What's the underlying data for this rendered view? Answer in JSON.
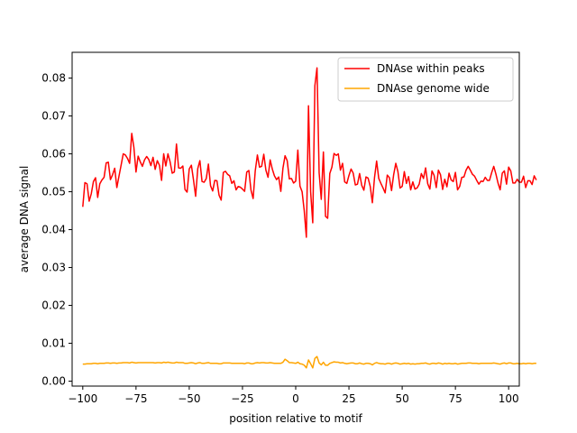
{
  "chart_data": {
    "type": "line",
    "title": "",
    "xlabel": "position relative to motif",
    "ylabel": "average DNA signal",
    "xlim": [
      -105,
      105
    ],
    "ylim": [
      -0.0013,
      0.0868
    ],
    "xticks": [
      -100,
      -75,
      -50,
      -25,
      0,
      25,
      50,
      75,
      100
    ],
    "yticks": [
      0.0,
      0.01,
      0.02,
      0.03,
      0.04,
      0.05,
      0.06,
      0.07,
      0.08
    ],
    "xtick_labels": [
      "−100",
      "−75",
      "−50",
      "−25",
      "0",
      "25",
      "50",
      "75",
      "100"
    ],
    "ytick_labels": [
      "0.00",
      "0.01",
      "0.02",
      "0.03",
      "0.04",
      "0.05",
      "0.06",
      "0.07",
      "0.08"
    ],
    "grid": false,
    "legend_position": "top-right",
    "x_start": -100,
    "x_step": 1,
    "series": [
      {
        "name": "DNAse within peaks",
        "color": "#ff0000",
        "values": [
          0.046,
          0.0524,
          0.0521,
          0.0475,
          0.0495,
          0.0527,
          0.0537,
          0.0485,
          0.0521,
          0.0531,
          0.0538,
          0.0576,
          0.0578,
          0.0532,
          0.0545,
          0.0562,
          0.0511,
          0.0541,
          0.057,
          0.06,
          0.0597,
          0.0588,
          0.0575,
          0.0654,
          0.0617,
          0.0552,
          0.0594,
          0.0579,
          0.0567,
          0.0584,
          0.0593,
          0.0585,
          0.0569,
          0.0591,
          0.0559,
          0.0582,
          0.057,
          0.053,
          0.06,
          0.0568,
          0.06,
          0.0579,
          0.0549,
          0.0552,
          0.0626,
          0.0563,
          0.0562,
          0.0568,
          0.0506,
          0.0499,
          0.056,
          0.057,
          0.0531,
          0.0488,
          0.0561,
          0.0582,
          0.0527,
          0.0525,
          0.0535,
          0.0573,
          0.0516,
          0.0502,
          0.053,
          0.0529,
          0.0491,
          0.0478,
          0.0551,
          0.0554,
          0.0546,
          0.0542,
          0.0522,
          0.0529,
          0.0505,
          0.0514,
          0.0512,
          0.0507,
          0.0501,
          0.0552,
          0.0556,
          0.0504,
          0.0482,
          0.0555,
          0.0597,
          0.0565,
          0.0567,
          0.0599,
          0.0557,
          0.0538,
          0.0584,
          0.056,
          0.0542,
          0.0532,
          0.0539,
          0.0501,
          0.0562,
          0.0595,
          0.0582,
          0.0534,
          0.0535,
          0.0523,
          0.0528,
          0.061,
          0.0515,
          0.05,
          0.045,
          0.038,
          0.0727,
          0.05,
          0.0418,
          0.078,
          0.0827,
          0.055,
          0.048,
          0.0605,
          0.0435,
          0.043,
          0.0548,
          0.0565,
          0.0601,
          0.0596,
          0.06,
          0.0557,
          0.0575,
          0.0526,
          0.0522,
          0.0543,
          0.056,
          0.0549,
          0.0518,
          0.052,
          0.0548,
          0.0517,
          0.0504,
          0.0539,
          0.0536,
          0.0514,
          0.0471,
          0.0537,
          0.0581,
          0.0535,
          0.0522,
          0.051,
          0.0497,
          0.0544,
          0.0537,
          0.0503,
          0.0545,
          0.0575,
          0.0553,
          0.051,
          0.0514,
          0.0553,
          0.0522,
          0.054,
          0.0505,
          0.0526,
          0.0507,
          0.051,
          0.052,
          0.0548,
          0.0535,
          0.0563,
          0.0521,
          0.0507,
          0.0555,
          0.0543,
          0.0511,
          0.0557,
          0.0545,
          0.0506,
          0.0533,
          0.0513,
          0.0549,
          0.0531,
          0.0527,
          0.0551,
          0.0505,
          0.0514,
          0.0538,
          0.0539,
          0.0557,
          0.0567,
          0.0557,
          0.0546,
          0.0541,
          0.053,
          0.052,
          0.0528,
          0.0527,
          0.0538,
          0.053,
          0.053,
          0.055,
          0.0567,
          0.0547,
          0.0523,
          0.0505,
          0.0549,
          0.0555,
          0.052,
          0.0565,
          0.0555,
          0.0523,
          0.0523,
          0.0533,
          0.0525,
          0.0525,
          0.0541,
          0.0511,
          0.0529,
          0.0529,
          0.0519,
          0.0542,
          0.0531
        ]
      },
      {
        "name": "DNAse genome wide",
        "color": "#ffa500",
        "values": [
          0.0045,
          0.0045,
          0.0046,
          0.0046,
          0.0046,
          0.0047,
          0.0047,
          0.0046,
          0.0047,
          0.0047,
          0.0047,
          0.0048,
          0.0048,
          0.0047,
          0.0048,
          0.0048,
          0.0047,
          0.0048,
          0.0048,
          0.0049,
          0.0049,
          0.0049,
          0.0048,
          0.005,
          0.0049,
          0.0048,
          0.0049,
          0.0049,
          0.0049,
          0.0049,
          0.0049,
          0.0049,
          0.0049,
          0.0049,
          0.0048,
          0.0049,
          0.0049,
          0.0048,
          0.005,
          0.0049,
          0.005,
          0.0049,
          0.0048,
          0.0048,
          0.005,
          0.0049,
          0.0049,
          0.0049,
          0.0047,
          0.0047,
          0.0048,
          0.0049,
          0.0048,
          0.0046,
          0.0048,
          0.0049,
          0.0047,
          0.0047,
          0.0048,
          0.0049,
          0.0047,
          0.0047,
          0.0047,
          0.0047,
          0.0046,
          0.0046,
          0.0048,
          0.0048,
          0.0048,
          0.0048,
          0.0047,
          0.0047,
          0.0047,
          0.0047,
          0.0047,
          0.0047,
          0.0046,
          0.0048,
          0.0048,
          0.0046,
          0.0046,
          0.0048,
          0.0049,
          0.0048,
          0.0049,
          0.0049,
          0.0048,
          0.0048,
          0.0049,
          0.0048,
          0.0047,
          0.0047,
          0.0047,
          0.0047,
          0.005,
          0.0058,
          0.0054,
          0.0049,
          0.0049,
          0.0048,
          0.0047,
          0.005,
          0.0046,
          0.0045,
          0.0042,
          0.0035,
          0.0056,
          0.0046,
          0.0035,
          0.006,
          0.0065,
          0.0048,
          0.0043,
          0.005,
          0.0042,
          0.0042,
          0.0047,
          0.0049,
          0.0051,
          0.005,
          0.005,
          0.0048,
          0.0049,
          0.0047,
          0.0046,
          0.0047,
          0.0048,
          0.0048,
          0.0046,
          0.0046,
          0.0048,
          0.0046,
          0.0045,
          0.0047,
          0.0047,
          0.0046,
          0.0043,
          0.0047,
          0.0049,
          0.0047,
          0.0046,
          0.0046,
          0.0045,
          0.0047,
          0.0047,
          0.0045,
          0.0047,
          0.0048,
          0.0047,
          0.0045,
          0.0046,
          0.0047,
          0.0046,
          0.0047,
          0.0045,
          0.0046,
          0.0045,
          0.0046,
          0.0046,
          0.0047,
          0.0047,
          0.0048,
          0.0046,
          0.0045,
          0.0047,
          0.0047,
          0.0046,
          0.0048,
          0.0047,
          0.0045,
          0.0047,
          0.0046,
          0.0047,
          0.0046,
          0.0046,
          0.0047,
          0.0045,
          0.0046,
          0.0047,
          0.0047,
          0.0047,
          0.0048,
          0.0048,
          0.0047,
          0.0047,
          0.0047,
          0.0046,
          0.0047,
          0.0047,
          0.0047,
          0.0047,
          0.0047,
          0.0047,
          0.0048,
          0.0047,
          0.0046,
          0.0045,
          0.0047,
          0.0048,
          0.0046,
          0.0048,
          0.0048,
          0.0046,
          0.0046,
          0.0047,
          0.0046,
          0.0046,
          0.0047,
          0.0046,
          0.0047,
          0.0047,
          0.0046,
          0.0047,
          0.0047
        ]
      }
    ]
  }
}
